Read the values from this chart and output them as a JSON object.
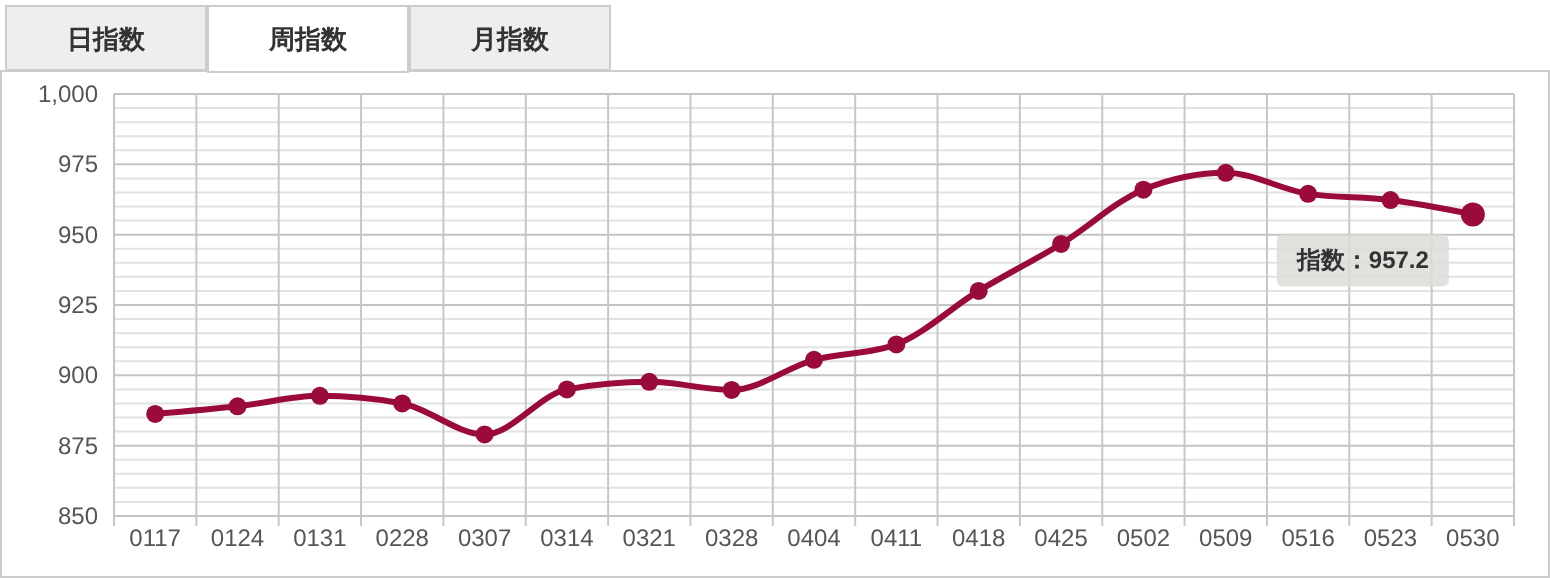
{
  "chart_data": {
    "type": "line",
    "categories": [
      "0117",
      "0124",
      "0131",
      "0228",
      "0307",
      "0314",
      "0321",
      "0328",
      "0404",
      "0411",
      "0418",
      "0425",
      "0502",
      "0509",
      "0516",
      "0523",
      "0530"
    ],
    "series": [
      {
        "color": "#9b0a3c",
        "values": [
          886.3,
          889,
          892.7,
          890,
          879,
          895,
          897.7,
          894.8,
          905.5,
          911,
          930,
          946.7,
          966,
          972,
          964.5,
          962.3,
          957.2
        ]
      }
    ],
    "ylim": [
      850,
      1000
    ],
    "yticks": [
      850,
      875,
      900,
      925,
      950,
      975,
      {
        "value": 1000,
        "label": "1,000"
      }
    ],
    "grid": true,
    "marker": "circle",
    "line_style": "solid",
    "annotations": [
      "日指数",
      "周指数",
      "月指数",
      {
        "text": "指数：957.2",
        "x": "0530",
        "y": 957.2
      }
    ]
  }
}
